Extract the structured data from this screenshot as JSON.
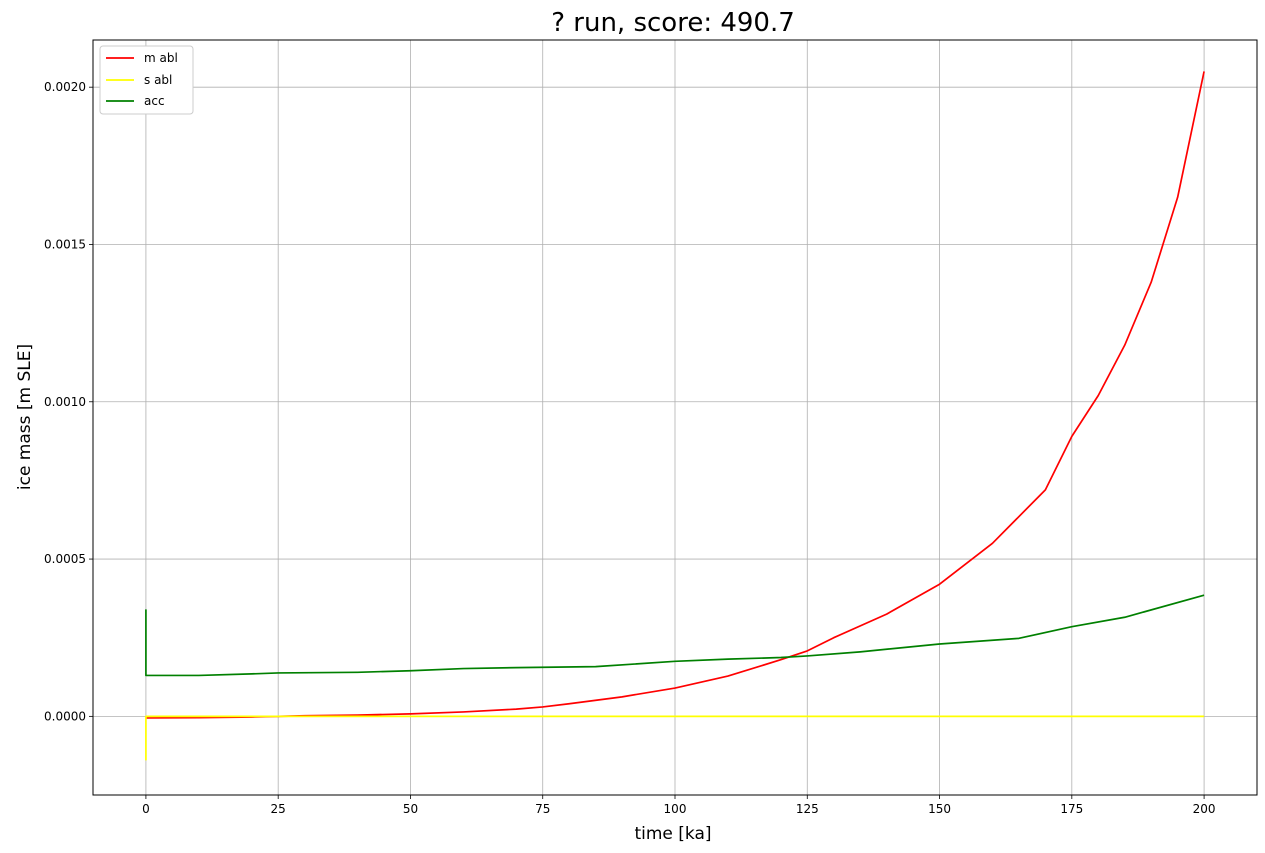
{
  "chart_data": {
    "type": "line",
    "title": "? run, score: 490.7",
    "xlabel": "time [ka]",
    "ylabel": "ice mass [m SLE]",
    "xlim": [
      -10,
      210
    ],
    "ylim": [
      -0.00025,
      0.00215
    ],
    "xticks": [
      0,
      25,
      50,
      75,
      100,
      125,
      150,
      175,
      200
    ],
    "xtick_labels": [
      "0",
      "25",
      "50",
      "75",
      "100",
      "125",
      "150",
      "175",
      "200"
    ],
    "yticks": [
      0.0,
      0.0005,
      0.001,
      0.0015,
      0.002
    ],
    "ytick_labels": [
      "0.0000",
      "0.0005",
      "0.0010",
      "0.0015",
      "0.0020"
    ],
    "grid": true,
    "legend_position": "top-left",
    "series": [
      {
        "name": "m abl",
        "color": "#ff0000",
        "points": [
          [
            0,
            -5e-06
          ],
          [
            10,
            -4e-06
          ],
          [
            20,
            -2e-06
          ],
          [
            25,
            0.0
          ],
          [
            30,
            2e-06
          ],
          [
            40,
            4e-06
          ],
          [
            50,
            8e-06
          ],
          [
            60,
            1.4e-05
          ],
          [
            70,
            2.3e-05
          ],
          [
            75,
            3e-05
          ],
          [
            80,
            4e-05
          ],
          [
            90,
            6.2e-05
          ],
          [
            100,
            9e-05
          ],
          [
            110,
            0.000128
          ],
          [
            120,
            0.00018
          ],
          [
            125,
            0.000208
          ],
          [
            130,
            0.00025
          ],
          [
            140,
            0.000325
          ],
          [
            150,
            0.00042
          ],
          [
            160,
            0.00055
          ],
          [
            170,
            0.00072
          ],
          [
            175,
            0.00089
          ],
          [
            180,
            0.00102
          ],
          [
            185,
            0.00118
          ],
          [
            190,
            0.00138
          ],
          [
            195,
            0.00165
          ],
          [
            200,
            0.00205
          ]
        ]
      },
      {
        "name": "s abl",
        "color": "#ffff00",
        "points": [
          [
            0,
            -0.00014
          ],
          [
            0,
            0.0
          ],
          [
            50,
            0.0
          ],
          [
            100,
            0.0
          ],
          [
            150,
            0.0
          ],
          [
            200,
            0.0
          ]
        ]
      },
      {
        "name": "acc",
        "color": "#008000",
        "points": [
          [
            0,
            0.00034
          ],
          [
            0,
            0.00013
          ],
          [
            10,
            0.00013
          ],
          [
            20,
            0.000135
          ],
          [
            25,
            0.000138
          ],
          [
            40,
            0.00014
          ],
          [
            50,
            0.000145
          ],
          [
            60,
            0.000152
          ],
          [
            70,
            0.000155
          ],
          [
            85,
            0.000158
          ],
          [
            100,
            0.000175
          ],
          [
            110,
            0.000182
          ],
          [
            120,
            0.000187
          ],
          [
            125,
            0.000192
          ],
          [
            135,
            0.000205
          ],
          [
            150,
            0.00023
          ],
          [
            165,
            0.000248
          ],
          [
            175,
            0.000285
          ],
          [
            185,
            0.000315
          ],
          [
            200,
            0.000385
          ]
        ]
      }
    ]
  }
}
